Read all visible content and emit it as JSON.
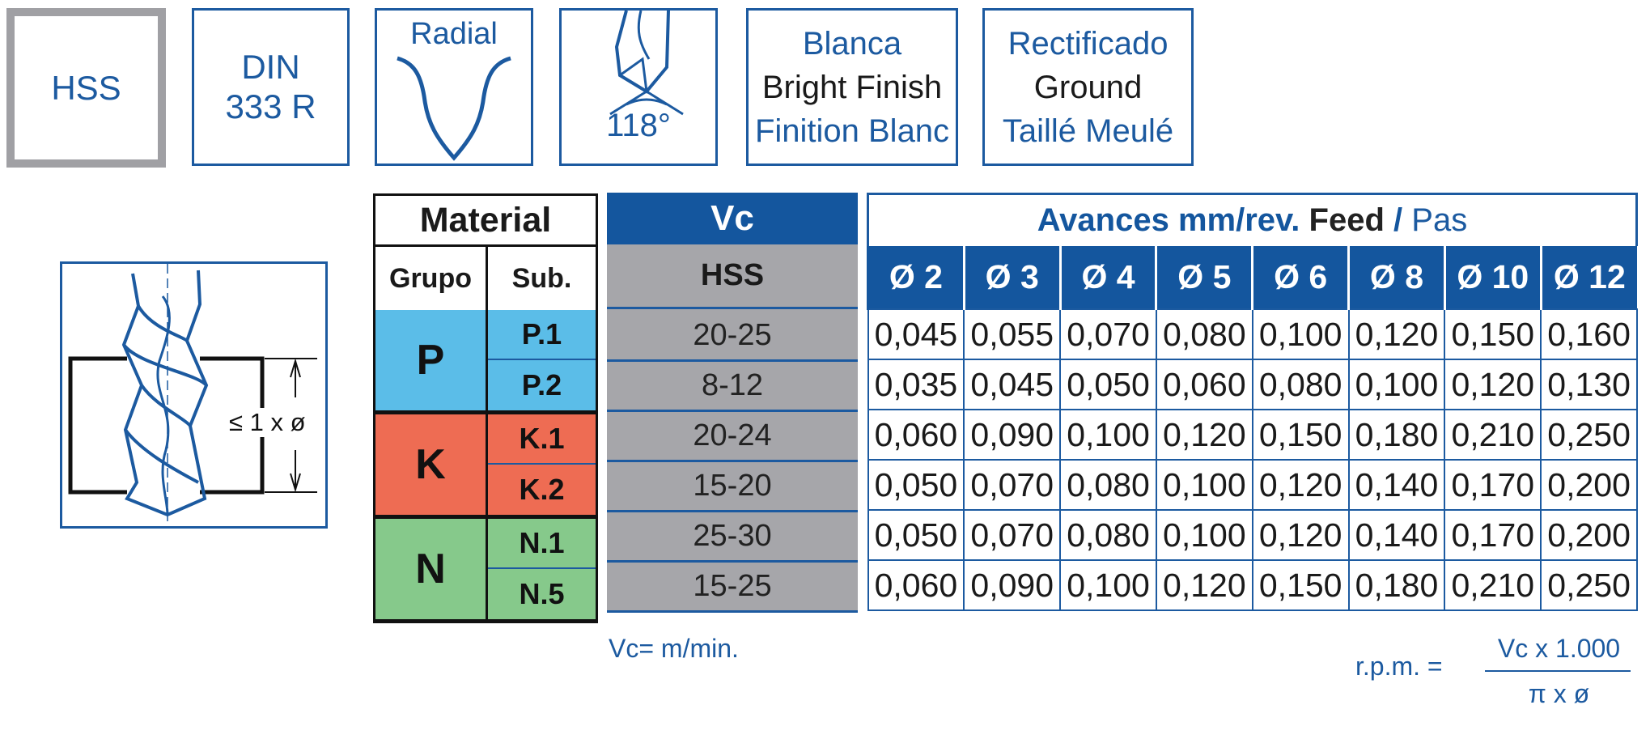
{
  "badges": {
    "hss": "HSS",
    "din_line1": "DIN",
    "din_line2": "333 R",
    "radial": "Radial",
    "angle": "118°",
    "finish_es": "Blanca",
    "finish_en": "Bright Finish",
    "finish_fr": "Finition Blanc",
    "ground_es": "Rectificado",
    "ground_en": "Ground",
    "ground_fr": "Taillé Meulé"
  },
  "depth_label": "≤ 1 x ø",
  "material": {
    "header": "Material",
    "col_group": "Grupo",
    "col_sub": "Sub.",
    "groups": [
      {
        "name": "P",
        "color": "#5bbde8",
        "subs": [
          "P.1",
          "P.2"
        ]
      },
      {
        "name": "K",
        "color": "#ee6c53",
        "subs": [
          "K.1",
          "K.2"
        ]
      },
      {
        "name": "N",
        "color": "#86c98b",
        "subs": [
          "N.1",
          "N.5"
        ]
      }
    ]
  },
  "vc": {
    "header": "Vc",
    "sub_header": "HSS",
    "values": [
      "20-25",
      "8-12",
      "20-24",
      "15-20",
      "25-30",
      "15-25"
    ],
    "unit_note": "Vc= m/min."
  },
  "feed": {
    "title_es": "Avances mm/rev.",
    "title_en": "Feed",
    "title_sep": "/",
    "title_fr": "Pas",
    "diameters": [
      "Ø 2",
      "Ø 3",
      "Ø 4",
      "Ø 5",
      "Ø 6",
      "Ø 8",
      "Ø 10",
      "Ø 12"
    ],
    "rows": [
      [
        "0,045",
        "0,055",
        "0,070",
        "0,080",
        "0,100",
        "0,120",
        "0,150",
        "0,160"
      ],
      [
        "0,035",
        "0,045",
        "0,050",
        "0,060",
        "0,080",
        "0,100",
        "0,120",
        "0,130"
      ],
      [
        "0,060",
        "0,090",
        "0,100",
        "0,120",
        "0,150",
        "0,180",
        "0,210",
        "0,250"
      ],
      [
        "0,050",
        "0,070",
        "0,080",
        "0,100",
        "0,120",
        "0,140",
        "0,170",
        "0,200"
      ],
      [
        "0,050",
        "0,070",
        "0,080",
        "0,100",
        "0,120",
        "0,140",
        "0,170",
        "0,200"
      ],
      [
        "0,060",
        "0,090",
        "0,100",
        "0,120",
        "0,150",
        "0,180",
        "0,210",
        "0,250"
      ]
    ]
  },
  "formula": {
    "lhs": "r.p.m. =",
    "numerator": "Vc x 1.000",
    "denominator": "π x ø"
  },
  "colors": {
    "brand_blue": "#14569e",
    "vc_grey": "#a6a6aa",
    "badge_grey": "#a0a0a4"
  }
}
